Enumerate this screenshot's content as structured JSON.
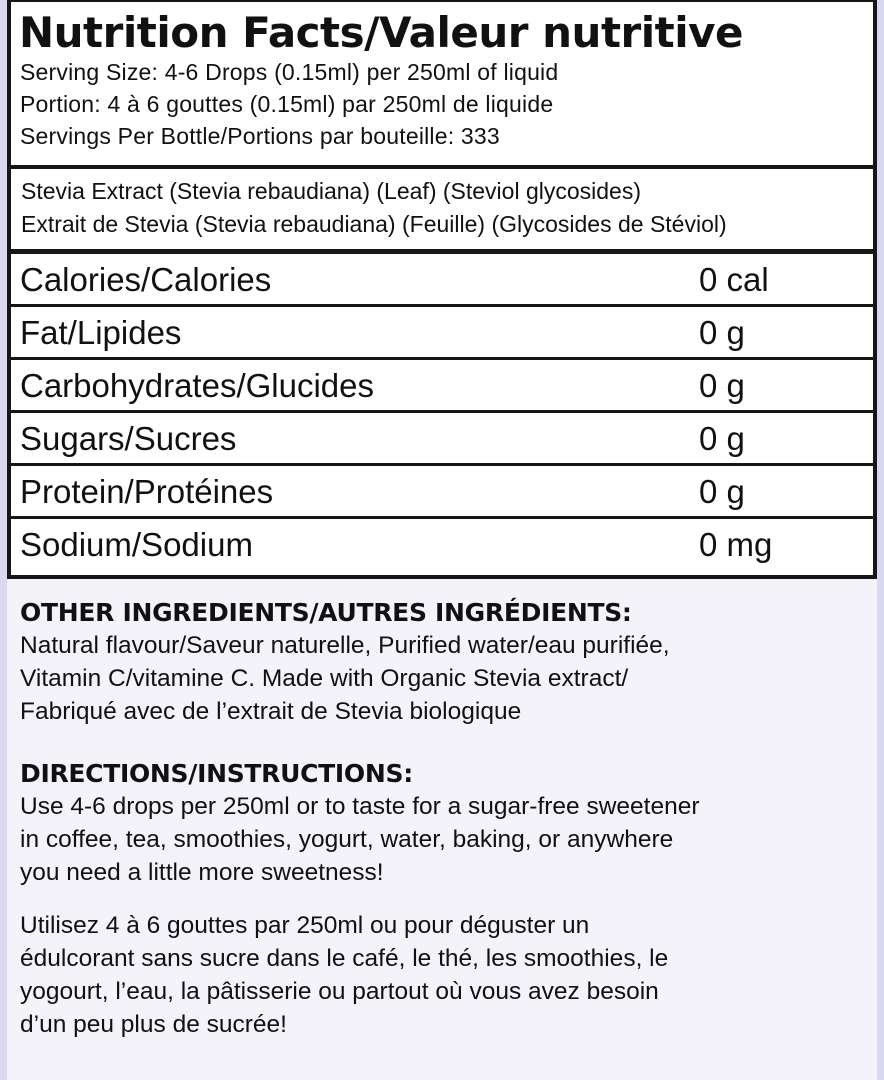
{
  "header": {
    "title": "Nutrition Facts/Valeur nutritive",
    "serving_size": "Serving Size: 4-6 Drops (0.15ml) per 250ml of liquid",
    "portion": "Portion: 4 à 6 gouttes (0.15ml) par 250ml de liquide",
    "servings_per_bottle": "Servings Per Bottle/Portions par bouteille: 333"
  },
  "active_ingredient": {
    "en": "Stevia Extract (Stevia rebaudiana) (Leaf) (Steviol glycosides)",
    "fr": "Extrait de Stevia (Stevia rebaudiana) (Feuille) (Glycosides de Stéviol)"
  },
  "nutrients": [
    {
      "name": "Calories/Calories",
      "value": "0 cal"
    },
    {
      "name": "Fat/Lipides",
      "value": "0 g"
    },
    {
      "name": "Carbohydrates/Glucides",
      "value": "0 g"
    },
    {
      "name": "Sugars/Sucres",
      "value": "0 g"
    },
    {
      "name": "Protein/Protéines",
      "value": "0 g"
    },
    {
      "name": "Sodium/Sodium",
      "value": "0 mg"
    }
  ],
  "other_ingredients": {
    "heading": "OTHER INGREDIENTS/AUTRES INGRÉDIENTS:",
    "lines": [
      "Natural flavour/Saveur naturelle, Purified water/eau purifiée,",
      "Vitamin C/vitamine C. Made with Organic Stevia extract/",
      "Fabriqué avec de l’extrait de Stevia biologique"
    ]
  },
  "directions": {
    "heading": "DIRECTIONS/INSTRUCTIONS:",
    "en_lines": [
      "Use 4-6 drops per 250ml or to taste for a sugar-free sweetener",
      "in coffee, tea, smoothies, yogurt, water, baking, or anywhere",
      "you need a little more sweetness!"
    ],
    "fr_lines": [
      "Utilisez 4 à 6 gouttes par 250ml ou pour déguster un",
      "édulcorant sans sucre dans le café, le thé, les smoothies, le",
      "yogourt, l’eau, la pâtisserie ou partout où vous avez besoin",
      "d’un peu plus de sucrée!"
    ]
  },
  "colors": {
    "background": "#f4f3fa",
    "border": "#161616",
    "edge": "#d9d8f0"
  }
}
